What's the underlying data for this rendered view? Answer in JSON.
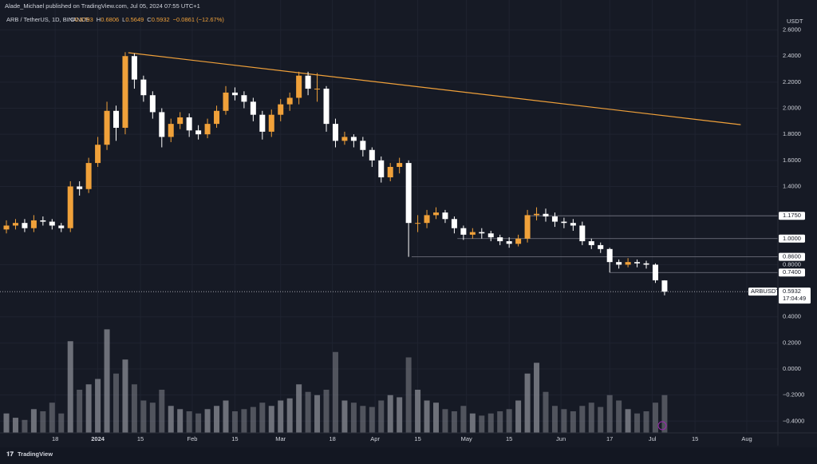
{
  "header": {
    "publisher": "Alade_Michael published on TradingView.com, Jul 05, 2024 07:55 UTC+1",
    "symbol": "ARB / TetherUS, 1D, BINANCE",
    "ohlc_labels": [
      "O",
      "H",
      "L",
      "C"
    ],
    "change": "−0.0861 (−12.67%)",
    "currency": "USDT",
    "ticker_tag": "ARBUSDT",
    "countdown": "17:04:49",
    "footer": "TradingView"
  },
  "chart_data": {
    "type": "candlestick",
    "x": [
      0,
      3,
      6,
      9,
      12,
      15,
      18,
      21,
      24,
      27,
      30,
      33,
      36,
      39,
      42,
      45,
      48,
      51,
      54,
      57,
      60,
      63,
      66,
      69,
      72,
      75,
      78,
      81,
      84,
      87,
      90,
      93,
      96,
      99,
      102,
      105,
      108,
      111,
      114,
      117,
      120,
      123,
      126,
      129,
      132,
      135,
      138,
      141,
      144,
      147,
      150,
      153,
      156,
      159,
      162,
      165,
      168,
      171,
      174,
      177,
      180,
      183,
      186,
      189,
      192,
      195,
      198,
      201,
      204,
      207,
      210,
      213,
      216
    ],
    "open": [
      1.07,
      1.1,
      1.12,
      1.08,
      1.14,
      1.13,
      1.1,
      1.08,
      1.4,
      1.38,
      1.58,
      1.72,
      1.98,
      1.85,
      2.4,
      2.22,
      2.1,
      1.97,
      1.78,
      1.88,
      1.93,
      1.83,
      1.8,
      1.88,
      1.98,
      2.12,
      2.1,
      2.05,
      1.95,
      1.82,
      1.95,
      2.03,
      2.08,
      2.25,
      2.15,
      2.15,
      1.88,
      1.75,
      1.78,
      1.75,
      1.68,
      1.6,
      1.47,
      1.55,
      1.58,
      1.12,
      1.12,
      1.18,
      1.2,
      1.15,
      1.08,
      1.03,
      1.05,
      1.04,
      1.01,
      0.98,
      0.96,
      1.0,
      1.18,
      1.19,
      1.17,
      1.13,
      1.12,
      1.1,
      0.98,
      0.95,
      0.92,
      0.82,
      0.8,
      0.82,
      0.81,
      0.8,
      0.6793
    ],
    "high": [
      1.14,
      1.15,
      1.15,
      1.18,
      1.17,
      1.15,
      1.12,
      1.44,
      1.44,
      1.62,
      1.78,
      2.05,
      2.02,
      2.43,
      2.42,
      2.25,
      2.13,
      2.0,
      1.92,
      1.97,
      1.96,
      1.87,
      1.92,
      2.02,
      2.17,
      2.16,
      2.13,
      2.08,
      1.98,
      1.99,
      2.07,
      2.12,
      2.28,
      2.28,
      2.27,
      2.17,
      1.92,
      1.82,
      1.8,
      1.78,
      1.7,
      1.63,
      1.58,
      1.62,
      1.6,
      1.18,
      1.22,
      1.24,
      1.22,
      1.17,
      1.1,
      1.08,
      1.08,
      1.06,
      1.03,
      1.01,
      1.03,
      1.22,
      1.24,
      1.23,
      1.2,
      1.16,
      1.15,
      1.13,
      1.0,
      0.97,
      0.93,
      0.84,
      0.85,
      0.84,
      0.83,
      0.81,
      0.6806
    ],
    "low": [
      1.04,
      1.07,
      1.05,
      1.05,
      1.1,
      1.07,
      1.05,
      1.05,
      1.33,
      1.35,
      1.55,
      1.68,
      1.75,
      1.8,
      2.15,
      2.05,
      1.92,
      1.7,
      1.74,
      1.84,
      1.78,
      1.76,
      1.77,
      1.85,
      1.95,
      2.06,
      2.0,
      1.9,
      1.76,
      1.78,
      1.9,
      1.98,
      2.03,
      2.1,
      2.05,
      1.82,
      1.7,
      1.72,
      1.7,
      1.63,
      1.55,
      1.43,
      1.44,
      1.5,
      0.86,
      1.05,
      1.08,
      1.15,
      1.12,
      1.04,
      0.99,
      1.0,
      1.0,
      0.98,
      0.95,
      0.93,
      0.94,
      0.97,
      1.14,
      1.13,
      1.09,
      1.08,
      1.06,
      0.95,
      0.92,
      0.89,
      0.74,
      0.77,
      0.78,
      0.78,
      0.77,
      0.66,
      0.5649
    ],
    "close": [
      1.1,
      1.12,
      1.08,
      1.14,
      1.13,
      1.1,
      1.08,
      1.4,
      1.38,
      1.58,
      1.72,
      1.98,
      1.85,
      2.4,
      2.22,
      2.1,
      1.97,
      1.78,
      1.88,
      1.93,
      1.83,
      1.8,
      1.88,
      1.98,
      2.12,
      2.1,
      2.05,
      1.95,
      1.82,
      1.95,
      2.03,
      2.08,
      2.25,
      2.15,
      2.15,
      1.88,
      1.75,
      1.78,
      1.75,
      1.68,
      1.6,
      1.47,
      1.55,
      1.58,
      1.12,
      1.12,
      1.18,
      1.2,
      1.15,
      1.08,
      1.03,
      1.05,
      1.04,
      1.01,
      0.98,
      0.96,
      1.0,
      1.18,
      1.19,
      1.17,
      1.13,
      1.12,
      1.1,
      0.98,
      0.95,
      0.92,
      0.82,
      0.8,
      0.82,
      0.81,
      0.8,
      0.68,
      0.5932
    ],
    "volume": [
      18,
      14,
      12,
      22,
      20,
      28,
      18,
      85,
      40,
      45,
      50,
      96,
      55,
      68,
      45,
      30,
      28,
      40,
      25,
      22,
      20,
      18,
      22,
      25,
      30,
      20,
      22,
      24,
      28,
      25,
      30,
      32,
      45,
      38,
      35,
      40,
      75,
      30,
      28,
      25,
      24,
      30,
      35,
      33,
      70,
      40,
      30,
      28,
      22,
      20,
      25,
      18,
      16,
      18,
      20,
      22,
      30,
      55,
      65,
      38,
      25,
      22,
      20,
      25,
      28,
      24,
      35,
      30,
      22,
      18,
      20,
      28,
      35
    ],
    "up_color": "#f0a13a",
    "down_color": "#ffffff",
    "volume_color": "#8b8e96",
    "xlim": [
      -2.1,
      253.2
    ],
    "ylim": [
      -0.49,
      2.72
    ],
    "y2lim": [
      0,
      100
    ],
    "xticks": [
      {
        "value": 16,
        "label": "18"
      },
      {
        "value": 30,
        "label": "2024"
      },
      {
        "value": 44,
        "label": "15"
      },
      {
        "value": 61,
        "label": "Feb"
      },
      {
        "value": 75,
        "label": "15"
      },
      {
        "value": 90,
        "label": "Mar"
      },
      {
        "value": 107,
        "label": "18"
      },
      {
        "value": 121,
        "label": "Apr"
      },
      {
        "value": 135,
        "label": "15"
      },
      {
        "value": 151,
        "label": "May"
      },
      {
        "value": 165,
        "label": "15"
      },
      {
        "value": 182,
        "label": "Jun"
      },
      {
        "value": 198,
        "label": "17"
      },
      {
        "value": 212,
        "label": "Jul"
      },
      {
        "value": 226,
        "label": "15"
      },
      {
        "value": 243,
        "label": "Aug"
      }
    ],
    "yticks": [
      {
        "value": 2.6,
        "label": "2.6000"
      },
      {
        "value": 2.4,
        "label": "2.4000"
      },
      {
        "value": 2.2,
        "label": "2.2000"
      },
      {
        "value": 2.0,
        "label": "2.0000"
      },
      {
        "value": 1.8,
        "label": "1.8000"
      },
      {
        "value": 1.6,
        "label": "1.6000"
      },
      {
        "value": 1.4,
        "label": "1.4000"
      },
      {
        "value": 0.8,
        "label": "0.8000"
      },
      {
        "value": 0.4,
        "label": "0.4000"
      },
      {
        "value": 0.2,
        "label": "0.2000"
      },
      {
        "value": 0.0,
        "label": "0.0000"
      },
      {
        "value": -0.2,
        "label": "−0.2000"
      },
      {
        "value": -0.4,
        "label": "−0.4000"
      }
    ],
    "grid": true,
    "trendline": {
      "x": [
        40,
        241
      ],
      "y": [
        2.426,
        1.874
      ],
      "color": "#f0a13a"
    },
    "levels": [
      {
        "value": 1.175,
        "label": "1.1750",
        "from": 171
      },
      {
        "value": 1.0,
        "label": "1.0000",
        "from": 148
      },
      {
        "value": 0.86,
        "label": "0.8600",
        "from": 133
      },
      {
        "value": 0.74,
        "label": "0.7400",
        "from": 198
      }
    ]
  }
}
